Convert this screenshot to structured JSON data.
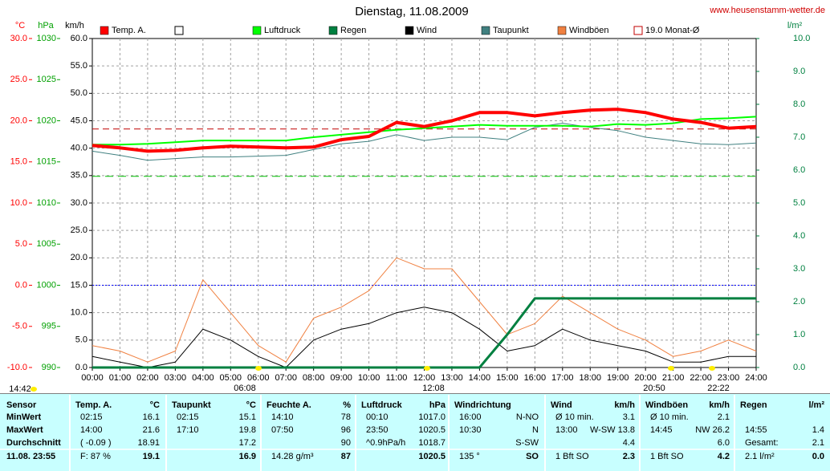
{
  "chart_data": {
    "type": "line",
    "title": "Dienstag, 11.08.2009",
    "source": "www.heusenstamm-wetter.de",
    "axis_labels": {
      "temp": "°C",
      "pressure": "hPa",
      "y": "km/h",
      "y2": "l/m²"
    },
    "x": [
      0,
      1,
      2,
      3,
      4,
      5,
      6,
      7,
      8,
      9,
      10,
      11,
      12,
      13,
      14,
      15,
      16,
      17,
      18,
      19,
      20,
      21,
      22,
      23,
      24
    ],
    "xlim": [
      0,
      24
    ],
    "xticks": [
      {
        "value": 0,
        "label": "00:00"
      },
      {
        "value": 1,
        "label": "01:00"
      },
      {
        "value": 2,
        "label": "02:00"
      },
      {
        "value": 3,
        "label": "03:00"
      },
      {
        "value": 4,
        "label": "04:00"
      },
      {
        "value": 5,
        "label": "05:00"
      },
      {
        "value": 6,
        "label": "06:00"
      },
      {
        "value": 7,
        "label": "07:00"
      },
      {
        "value": 8,
        "label": "08:00"
      },
      {
        "value": 9,
        "label": "09:00"
      },
      {
        "value": 10,
        "label": "10:00"
      },
      {
        "value": 11,
        "label": "11:00"
      },
      {
        "value": 12,
        "label": "12:00"
      },
      {
        "value": 13,
        "label": "13:00"
      },
      {
        "value": 14,
        "label": "14:00"
      },
      {
        "value": 15,
        "label": "15:00"
      },
      {
        "value": 16,
        "label": "16:00"
      },
      {
        "value": 17,
        "label": "17:00"
      },
      {
        "value": 18,
        "label": "18:00"
      },
      {
        "value": 19,
        "label": "19:00"
      },
      {
        "value": 20,
        "label": "20:00"
      },
      {
        "value": 21,
        "label": "21:00"
      },
      {
        "value": 22,
        "label": "22:00"
      },
      {
        "value": 23,
        "label": "23:00"
      },
      {
        "value": 24,
        "label": "24:00"
      }
    ],
    "ylim": [
      0,
      60
    ],
    "yticks": [
      {
        "value": 0,
        "label": "0.0"
      },
      {
        "value": 5,
        "label": "5.0"
      },
      {
        "value": 10,
        "label": "10.0"
      },
      {
        "value": 15,
        "label": "15.0"
      },
      {
        "value": 20,
        "label": "20.0"
      },
      {
        "value": 25,
        "label": "25.0"
      },
      {
        "value": 30,
        "label": "30.0"
      },
      {
        "value": 35,
        "label": "35.0"
      },
      {
        "value": 40,
        "label": "40.0"
      },
      {
        "value": 45,
        "label": "45.0"
      },
      {
        "value": 50,
        "label": "50.0"
      },
      {
        "value": 55,
        "label": "55.0"
      },
      {
        "value": 60,
        "label": "60.0"
      }
    ],
    "temp_lim": [
      -10,
      30
    ],
    "temp_ticks": [
      {
        "value": -10,
        "label": "-10.0"
      },
      {
        "value": -5,
        "label": "-5.0"
      },
      {
        "value": 0,
        "label": "0.0"
      },
      {
        "value": 5,
        "label": "5.0"
      },
      {
        "value": 10,
        "label": "10.0"
      },
      {
        "value": 15,
        "label": "15.0"
      },
      {
        "value": 20,
        "label": "20.0"
      },
      {
        "value": 25,
        "label": "25.0"
      },
      {
        "value": 30,
        "label": "30.0"
      }
    ],
    "pressure_lim": [
      990,
      1030
    ],
    "pressure_ticks": [
      990,
      995,
      1000,
      1005,
      1010,
      1015,
      1020,
      1025,
      1030
    ],
    "y2lim": [
      0,
      10
    ],
    "y2ticks": [
      {
        "value": 0,
        "label": "0.0"
      },
      {
        "value": 1,
        "label": "1.0"
      },
      {
        "value": 2,
        "label": "2.0"
      },
      {
        "value": 3,
        "label": "3.0"
      },
      {
        "value": 4,
        "label": "4.0"
      },
      {
        "value": 5,
        "label": "5.0"
      },
      {
        "value": 6,
        "label": "6.0"
      },
      {
        "value": 7,
        "label": "7.0"
      },
      {
        "value": 8,
        "label": "8.0"
      },
      {
        "value": 9,
        "label": "9.0"
      },
      {
        "value": 10,
        "label": "10.0"
      }
    ],
    "grid": true,
    "series": [
      {
        "name": "Temp. A.",
        "color": "#ff0000",
        "axis": "temp",
        "values": [
          17.0,
          16.7,
          16.3,
          16.4,
          16.7,
          16.9,
          16.8,
          16.7,
          16.8,
          17.7,
          18.1,
          19.8,
          19.3,
          20.0,
          21.0,
          21.0,
          20.6,
          21.0,
          21.3,
          21.4,
          21.0,
          20.2,
          19.8,
          19.1,
          19.3
        ]
      },
      {
        "name": "Luftdruck",
        "color": "#00ff00",
        "axis": "pressure",
        "values": [
          1017.1,
          1017.1,
          1017.2,
          1017.4,
          1017.6,
          1017.6,
          1017.6,
          1017.6,
          1018.0,
          1018.3,
          1018.6,
          1018.9,
          1019.1,
          1019.3,
          1019.5,
          1019.4,
          1019.4,
          1019.4,
          1019.3,
          1019.6,
          1019.5,
          1019.7,
          1020.2,
          1020.3,
          1020.5
        ]
      },
      {
        "name": "Regen",
        "color": "#008040",
        "axis": "y2",
        "values": [
          0,
          0,
          0,
          0,
          0,
          0,
          0,
          0,
          0,
          0,
          0,
          0,
          0,
          0,
          0,
          1.0,
          2.1,
          2.1,
          2.1,
          2.1,
          2.1,
          2.1,
          2.1,
          2.1,
          2.1
        ]
      },
      {
        "name": "Wind",
        "color": "#000000",
        "axis": "y",
        "values": [
          2,
          1,
          0,
          1,
          7,
          5,
          2,
          0,
          5,
          7,
          8,
          10,
          11,
          10,
          7,
          3,
          4,
          7,
          5,
          4,
          3,
          1,
          1,
          2,
          2
        ]
      },
      {
        "name": "Taupunkt",
        "color": "#408080",
        "axis": "temp",
        "values": [
          16.3,
          15.8,
          15.2,
          15.4,
          15.6,
          15.6,
          15.7,
          15.8,
          16.5,
          17.2,
          17.5,
          18.3,
          17.6,
          18.0,
          18.0,
          17.7,
          19.2,
          19.7,
          19.2,
          18.8,
          18.0,
          17.6,
          17.2,
          17.1,
          17.3
        ]
      },
      {
        "name": "Windböen",
        "color": "#f08040",
        "axis": "y",
        "values": [
          4,
          3,
          1,
          3,
          16,
          10,
          4,
          1,
          9,
          11,
          14,
          20,
          18,
          18,
          12,
          6,
          8,
          13,
          10,
          7,
          5,
          2,
          3,
          5,
          3
        ]
      }
    ],
    "reference_lines": [
      {
        "label": "19.0 Monat-Ø",
        "axis": "temp",
        "value": 19.0,
        "color": "#c00000"
      },
      {
        "axis": "pressure",
        "value": 1013.25,
        "color": "#00c000"
      },
      {
        "axis": "temp",
        "value": 0,
        "color": "#0000ff"
      }
    ],
    "annotations": [
      "14:42",
      "06:08",
      "12:08",
      "20:50",
      "22:22"
    ]
  },
  "table": {
    "row_labels": [
      "Sensor",
      "MinWert",
      "MaxWert",
      "Durchschnitt",
      "11.08. 23:55"
    ],
    "columns": [
      {
        "name": "Temp. A.",
        "unit": "°C",
        "rows": [
          [
            "02:15",
            "16.1"
          ],
          [
            "14:00",
            "21.6"
          ],
          [
            "( -0.09 )",
            "18.91"
          ],
          [
            "F: 87 %",
            "19.1"
          ]
        ]
      },
      {
        "name": "Taupunkt",
        "unit": "°C",
        "rows": [
          [
            "02:15",
            "15.1"
          ],
          [
            "17:10",
            "19.8"
          ],
          [
            null,
            "17.2"
          ],
          [
            null,
            "16.9"
          ]
        ]
      },
      {
        "name": "Feuchte A.",
        "unit": "%",
        "rows": [
          [
            "14:10",
            "78"
          ],
          [
            "07:50",
            "96"
          ],
          [
            null,
            "90"
          ],
          [
            "14.28 g/m³",
            "87"
          ]
        ]
      },
      {
        "name": "Luftdruck",
        "unit": "hPa",
        "rows": [
          [
            "00:10",
            "1017.0"
          ],
          [
            "23:50",
            "1020.5"
          ],
          [
            "^0.9hPa/h",
            "1018.7"
          ],
          [
            null,
            "1020.5"
          ]
        ]
      },
      {
        "name": "Windrichtung",
        "unit": null,
        "rows": [
          [
            "16:00",
            "N-NO"
          ],
          [
            "10:30",
            "N"
          ],
          [
            null,
            "S-SW"
          ],
          [
            "135 °",
            "SO"
          ]
        ]
      },
      {
        "name": "Wind",
        "unit": "km/h",
        "rows": [
          [
            "Ø 10 min.",
            "3.1"
          ],
          [
            "13:00",
            "W-SW 13.8"
          ],
          [
            null,
            "4.4"
          ],
          [
            "1 Bft SO",
            "2.3"
          ]
        ]
      },
      {
        "name": "Windböen",
        "unit": "km/h",
        "rows": [
          [
            "Ø 10 min.",
            "2.1"
          ],
          [
            "14:45",
            "NW 26.2"
          ],
          [
            null,
            "6.0"
          ],
          [
            "1 Bft SO",
            "4.2"
          ]
        ]
      },
      {
        "name": "Regen",
        "unit": "l/m²",
        "rows": [
          [
            null,
            null
          ],
          [
            "14:55",
            "1.4"
          ],
          [
            "Gesamt:",
            "2.1"
          ],
          [
            "2.1 l/m²",
            "0.0"
          ]
        ]
      }
    ]
  }
}
